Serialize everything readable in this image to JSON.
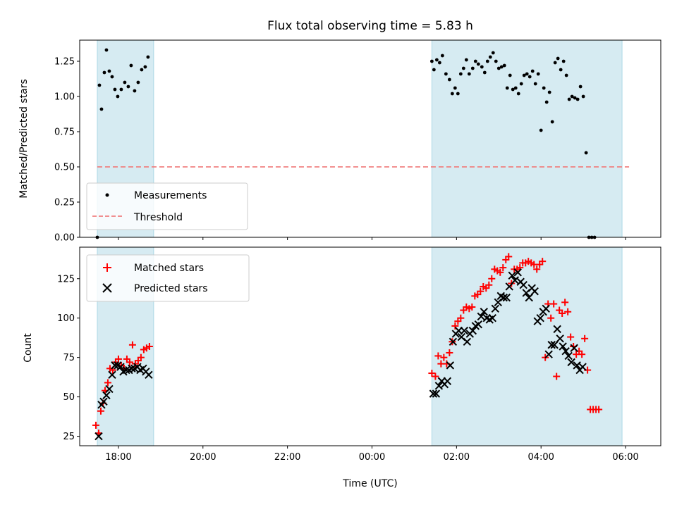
{
  "chart_data": [
    {
      "type": "scatter",
      "title": "Flux total observing time = 5.83 h",
      "ylabel": "Matched/Predicted stars",
      "xlim": [
        "17:05",
        "06:50"
      ],
      "ylim": [
        0,
        1.4
      ],
      "yticks": [
        0,
        0.25,
        0.5,
        0.75,
        1.0,
        1.25
      ],
      "ytick_labels": [
        "0.00",
        "0.25",
        "0.50",
        "0.75",
        "1.00",
        "1.25"
      ],
      "shaded_spans": [
        [
          "17:30",
          "18:50"
        ],
        [
          "01:25",
          "05:55"
        ]
      ],
      "legend_position": "lower-left",
      "series": [
        {
          "name": "Measurements",
          "color": "#000000",
          "marker": "dot",
          "points": [
            [
              "17:30",
              0.0
            ],
            [
              "17:33",
              1.08
            ],
            [
              "17:36",
              0.91
            ],
            [
              "17:40",
              1.17
            ],
            [
              "17:43",
              1.33
            ],
            [
              "17:47",
              1.18
            ],
            [
              "17:51",
              1.14
            ],
            [
              "17:55",
              1.05
            ],
            [
              "17:59",
              1.0
            ],
            [
              "18:04",
              1.05
            ],
            [
              "18:09",
              1.1
            ],
            [
              "18:14",
              1.07
            ],
            [
              "18:18",
              1.22
            ],
            [
              "18:23",
              1.04
            ],
            [
              "18:28",
              1.1
            ],
            [
              "18:33",
              1.19
            ],
            [
              "18:38",
              1.21
            ],
            [
              "18:42",
              1.28
            ],
            [
              "01:25",
              1.25
            ],
            [
              "01:28",
              1.19
            ],
            [
              "01:32",
              1.26
            ],
            [
              "01:36",
              1.24
            ],
            [
              "01:40",
              1.29
            ],
            [
              "01:45",
              1.16
            ],
            [
              "01:50",
              1.12
            ],
            [
              "01:54",
              1.02
            ],
            [
              "01:58",
              1.06
            ],
            [
              "02:02",
              1.02
            ],
            [
              "02:06",
              1.16
            ],
            [
              "02:10",
              1.2
            ],
            [
              "02:14",
              1.26
            ],
            [
              "02:18",
              1.16
            ],
            [
              "02:23",
              1.2
            ],
            [
              "02:27",
              1.25
            ],
            [
              "02:31",
              1.23
            ],
            [
              "02:36",
              1.21
            ],
            [
              "02:40",
              1.17
            ],
            [
              "02:44",
              1.25
            ],
            [
              "02:48",
              1.28
            ],
            [
              "02:52",
              1.31
            ],
            [
              "02:56",
              1.25
            ],
            [
              "03:00",
              1.2
            ],
            [
              "03:04",
              1.21
            ],
            [
              "03:08",
              1.22
            ],
            [
              "03:12",
              1.06
            ],
            [
              "03:16",
              1.15
            ],
            [
              "03:20",
              1.05
            ],
            [
              "03:24",
              1.06
            ],
            [
              "03:28",
              1.02
            ],
            [
              "03:32",
              1.09
            ],
            [
              "03:36",
              1.15
            ],
            [
              "03:40",
              1.16
            ],
            [
              "03:44",
              1.14
            ],
            [
              "03:48",
              1.18
            ],
            [
              "03:52",
              1.09
            ],
            [
              "03:56",
              1.16
            ],
            [
              "04:00",
              0.76
            ],
            [
              "04:04",
              1.06
            ],
            [
              "04:08",
              0.96
            ],
            [
              "04:12",
              1.03
            ],
            [
              "04:16",
              0.82
            ],
            [
              "04:20",
              1.24
            ],
            [
              "04:24",
              1.27
            ],
            [
              "04:28",
              1.19
            ],
            [
              "04:32",
              1.25
            ],
            [
              "04:36",
              1.15
            ],
            [
              "04:40",
              0.98
            ],
            [
              "04:44",
              1.0
            ],
            [
              "04:48",
              0.99
            ],
            [
              "04:52",
              0.98
            ],
            [
              "04:56",
              1.07
            ],
            [
              "05:00",
              1.0
            ],
            [
              "05:04",
              0.6
            ],
            [
              "05:08",
              0.0
            ],
            [
              "05:12",
              0.0
            ],
            [
              "05:16",
              0.0
            ]
          ]
        },
        {
          "name": "Threshold",
          "color": "#f08080",
          "style": "dashed",
          "points": [
            [
              "17:30",
              0.5
            ],
            [
              "06:05",
              0.5
            ]
          ]
        }
      ]
    },
    {
      "type": "scatter",
      "xlabel": "Time (UTC)",
      "ylabel": "Count",
      "xlim": [
        "17:05",
        "06:50"
      ],
      "ylim": [
        19,
        145
      ],
      "yticks": [
        25,
        50,
        75,
        100,
        125
      ],
      "ytick_labels": [
        "25",
        "50",
        "75",
        "100",
        "125"
      ],
      "xticks": [
        "18:00",
        "20:00",
        "22:00",
        "00:00",
        "02:00",
        "04:00",
        "06:00"
      ],
      "shaded_spans": [
        [
          "17:30",
          "18:50"
        ],
        [
          "01:25",
          "05:55"
        ]
      ],
      "legend_position": "upper-left",
      "series": [
        {
          "name": "Matched stars",
          "color": "#ff0000",
          "marker": "plus",
          "points": [
            [
              "17:28",
              32
            ],
            [
              "17:32",
              27
            ],
            [
              "17:35",
              41
            ],
            [
              "17:38",
              46
            ],
            [
              "17:41",
              54
            ],
            [
              "17:45",
              59
            ],
            [
              "17:48",
              68
            ],
            [
              "17:52",
              67
            ],
            [
              "17:56",
              72
            ],
            [
              "18:00",
              74
            ],
            [
              "18:04",
              70
            ],
            [
              "18:08",
              68
            ],
            [
              "18:12",
              74
            ],
            [
              "18:16",
              72
            ],
            [
              "18:20",
              83
            ],
            [
              "18:24",
              71
            ],
            [
              "18:28",
              73
            ],
            [
              "18:32",
              75
            ],
            [
              "18:36",
              80
            ],
            [
              "18:40",
              81
            ],
            [
              "18:44",
              82
            ],
            [
              "01:25",
              65
            ],
            [
              "01:30",
              63
            ],
            [
              "01:34",
              76
            ],
            [
              "01:38",
              71
            ],
            [
              "01:42",
              75
            ],
            [
              "01:46",
              71
            ],
            [
              "01:50",
              78
            ],
            [
              "01:54",
              85
            ],
            [
              "01:58",
              95
            ],
            [
              "02:02",
              98
            ],
            [
              "02:06",
              100
            ],
            [
              "02:10",
              105
            ],
            [
              "02:14",
              107
            ],
            [
              "02:18",
              106
            ],
            [
              "02:22",
              107
            ],
            [
              "02:26",
              114
            ],
            [
              "02:30",
              115
            ],
            [
              "02:34",
              117
            ],
            [
              "02:38",
              120
            ],
            [
              "02:42",
              119
            ],
            [
              "02:46",
              121
            ],
            [
              "02:50",
              125
            ],
            [
              "02:54",
              131
            ],
            [
              "02:58",
              130
            ],
            [
              "03:02",
              129
            ],
            [
              "03:06",
              132
            ],
            [
              "03:10",
              137
            ],
            [
              "03:14",
              139
            ],
            [
              "03:18",
              122
            ],
            [
              "03:22",
              131
            ],
            [
              "03:26",
              131
            ],
            [
              "03:30",
              132
            ],
            [
              "03:34",
              135
            ],
            [
              "03:38",
              135
            ],
            [
              "03:42",
              136
            ],
            [
              "03:46",
              135
            ],
            [
              "03:50",
              134
            ],
            [
              "03:54",
              131
            ],
            [
              "03:58",
              134
            ],
            [
              "04:02",
              136
            ],
            [
              "04:06",
              75
            ],
            [
              "04:10",
              109
            ],
            [
              "04:14",
              100
            ],
            [
              "04:18",
              109
            ],
            [
              "04:22",
              63
            ],
            [
              "04:26",
              105
            ],
            [
              "04:30",
              103
            ],
            [
              "04:34",
              110
            ],
            [
              "04:38",
              104
            ],
            [
              "04:42",
              88
            ],
            [
              "04:46",
              82
            ],
            [
              "04:50",
              77
            ],
            [
              "04:54",
              79
            ],
            [
              "04:58",
              77
            ],
            [
              "05:02",
              87
            ],
            [
              "05:06",
              67
            ],
            [
              "05:10",
              42
            ],
            [
              "05:14",
              42
            ],
            [
              "05:18",
              42
            ],
            [
              "05:22",
              42
            ]
          ]
        },
        {
          "name": "Predicted stars",
          "color": "#000000",
          "marker": "x",
          "points": [
            [
              "17:32",
              25
            ],
            [
              "17:36",
              45
            ],
            [
              "17:39",
              47
            ],
            [
              "17:43",
              51
            ],
            [
              "17:47",
              55
            ],
            [
              "17:51",
              64
            ],
            [
              "17:55",
              70
            ],
            [
              "17:59",
              70
            ],
            [
              "18:03",
              69
            ],
            [
              "18:07",
              66
            ],
            [
              "18:11",
              67
            ],
            [
              "18:15",
              67
            ],
            [
              "18:19",
              68
            ],
            [
              "18:23",
              68
            ],
            [
              "18:27",
              69
            ],
            [
              "18:31",
              67
            ],
            [
              "18:35",
              68
            ],
            [
              "18:39",
              66
            ],
            [
              "18:43",
              64
            ],
            [
              "01:27",
              52
            ],
            [
              "01:31",
              52
            ],
            [
              "01:35",
              57
            ],
            [
              "01:39",
              60
            ],
            [
              "01:43",
              58
            ],
            [
              "01:47",
              60
            ],
            [
              "01:51",
              70
            ],
            [
              "01:55",
              85
            ],
            [
              "01:59",
              90
            ],
            [
              "02:03",
              92
            ],
            [
              "02:07",
              88
            ],
            [
              "02:11",
              92
            ],
            [
              "02:15",
              85
            ],
            [
              "02:19",
              90
            ],
            [
              "02:23",
              92
            ],
            [
              "02:27",
              95
            ],
            [
              "02:31",
              96
            ],
            [
              "02:35",
              101
            ],
            [
              "02:39",
              104
            ],
            [
              "02:43",
              100
            ],
            [
              "02:47",
              99
            ],
            [
              "02:51",
              100
            ],
            [
              "02:55",
              106
            ],
            [
              "02:59",
              110
            ],
            [
              "03:03",
              114
            ],
            [
              "03:07",
              113
            ],
            [
              "03:11",
              113
            ],
            [
              "03:15",
              120
            ],
            [
              "03:19",
              127
            ],
            [
              "03:23",
              124
            ],
            [
              "03:27",
              129
            ],
            [
              "03:31",
              123
            ],
            [
              "03:35",
              121
            ],
            [
              "03:39",
              116
            ],
            [
              "03:43",
              113
            ],
            [
              "03:47",
              119
            ],
            [
              "03:51",
              117
            ],
            [
              "03:55",
              98
            ],
            [
              "03:59",
              100
            ],
            [
              "04:03",
              104
            ],
            [
              "04:07",
              106
            ],
            [
              "04:11",
              77
            ],
            [
              "04:15",
              83
            ],
            [
              "04:19",
              83
            ],
            [
              "04:23",
              93
            ],
            [
              "04:27",
              87
            ],
            [
              "04:31",
              82
            ],
            [
              "04:35",
              79
            ],
            [
              "04:39",
              76
            ],
            [
              "04:43",
              72
            ],
            [
              "04:47",
              81
            ],
            [
              "04:51",
              70
            ],
            [
              "04:55",
              67
            ],
            [
              "04:59",
              69
            ]
          ]
        }
      ]
    }
  ]
}
